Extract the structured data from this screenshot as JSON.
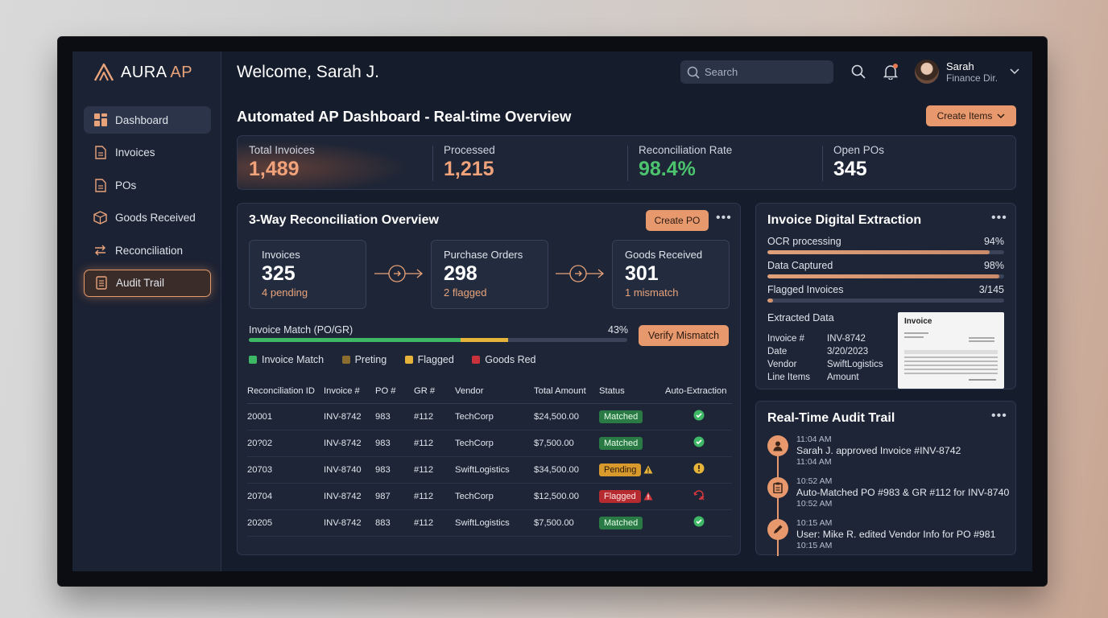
{
  "app": {
    "logo_main": "AURA",
    "logo_accent": "AP"
  },
  "sidebar": {
    "items": [
      {
        "label": "Dashboard",
        "icon": "dashboard-icon"
      },
      {
        "label": "Invoices",
        "icon": "document-icon"
      },
      {
        "label": "POs",
        "icon": "document-icon"
      },
      {
        "label": "Goods Received",
        "icon": "box-icon"
      },
      {
        "label": "Reconciliation",
        "icon": "swap-icon"
      },
      {
        "label": "Audit Trail",
        "icon": "list-document-icon"
      }
    ]
  },
  "header": {
    "welcome": "Welcome, Sarah J.",
    "search_placeholder": "Search",
    "user_name": "Sarah",
    "user_role": "Finance Dir."
  },
  "page": {
    "title": "Automated AP Dashboard - Real-time Overview",
    "create_items_label": "Create Items"
  },
  "stats": [
    {
      "label": "Total Invoices",
      "value": "1,489",
      "color": "#f0a27a"
    },
    {
      "label": "Processed",
      "value": "1,215",
      "color": "#f0a27a"
    },
    {
      "label": "Reconciliation Rate",
      "value": "98.4%",
      "color": "#4cc46e"
    },
    {
      "label": "Open POs",
      "value": "345",
      "color": "#ffffff"
    }
  ],
  "reconciliation": {
    "title": "3-Way Reconciliation Overview",
    "create_po_label": "Create PO",
    "flow": [
      {
        "label": "Invoices",
        "value": "325",
        "sub": "4 pending"
      },
      {
        "label": "Purchase Orders",
        "value": "298",
        "sub": "2 flagged"
      },
      {
        "label": "Goods Received",
        "value": "301",
        "sub": "1 mismatch"
      }
    ],
    "match_label": "Invoice Match (PO/GR)",
    "match_percent": "43%",
    "verify_label": "Verify Mismatch",
    "legend": [
      {
        "label": "Invoice Match",
        "color": "#3fb866"
      },
      {
        "label": "Preting",
        "color": "#8a6d2e"
      },
      {
        "label": "Flagged",
        "color": "#e7b43b"
      },
      {
        "label": "Goods Red",
        "color": "#c8323a"
      }
    ],
    "columns": [
      "Reconciliation ID",
      "Invoice #",
      "PO #",
      "GR #",
      "Vendor",
      "Total Amount",
      "Status",
      "Auto-Extraction"
    ],
    "rows": [
      {
        "id": "20001",
        "invoice": "INV-8742",
        "po": "983",
        "gr": "#112",
        "vendor": "TechCorp",
        "amount": "$24,500.00",
        "status": "Matched"
      },
      {
        "id": "20?02",
        "invoice": "INV-8742",
        "po": "983",
        "gr": "#112",
        "vendor": "TechCorp",
        "amount": "$7,500.00",
        "status": "Matched"
      },
      {
        "id": "20703",
        "invoice": "INV-8740",
        "po": "983",
        "gr": "#112",
        "vendor": "SwiftLogistics",
        "amount": "$34,500.00",
        "status": "Pending"
      },
      {
        "id": "20704",
        "invoice": "INV-8742",
        "po": "987",
        "gr": "#112",
        "vendor": "TechCorp",
        "amount": "$12,500.00",
        "status": "Flagged"
      },
      {
        "id": "20205",
        "invoice": "INV-8742",
        "po": "883",
        "gr": "#112",
        "vendor": "SwiftLogistics",
        "amount": "$7,500.00",
        "status": "Matched"
      }
    ]
  },
  "extraction": {
    "title": "Invoice Digital Extraction",
    "bars": [
      {
        "label": "OCR processing",
        "value": "94%",
        "fill": 0.94
      },
      {
        "label": "Data Captured",
        "value": "98%",
        "fill": 0.98
      },
      {
        "label": "Flagged Invoices",
        "value": "3/145",
        "fill": 0.02
      }
    ],
    "extracted_title": "Extracted Data",
    "fields": [
      {
        "key": "Invoice #",
        "value": "INV-8742"
      },
      {
        "key": "Date",
        "value": "3/20/2023"
      },
      {
        "key": "Vendor",
        "value": "SwiftLogistics"
      },
      {
        "key": "Line Items",
        "value": "Amount"
      }
    ],
    "thumb_title": "Invoice"
  },
  "audit": {
    "title": "Real-Time Audit Trail",
    "items": [
      {
        "time": "11:04 AM",
        "text": "Sarah J. approved Invoice #INV-8742",
        "time2": "11:04 AM",
        "icon": "user-icon"
      },
      {
        "time": "10:52 AM",
        "text": "Auto-Matched PO #983 & GR #112 for INV-8740",
        "time2": "10:52 AM",
        "icon": "clipboard-icon"
      },
      {
        "time": "10:15 AM",
        "text": "User: Mike R. edited Vendor Info for PO #981",
        "time2": "10:15 AM",
        "icon": "pencil-icon"
      }
    ]
  }
}
